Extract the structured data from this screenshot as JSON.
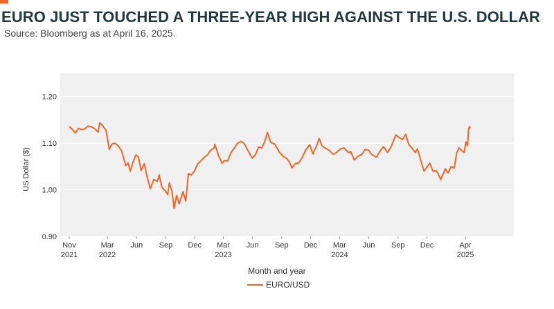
{
  "title": "EURO JUST TOUCHED A THREE-YEAR HIGH AGAINST THE U.S. DOLLAR",
  "subtitle": "Source: Bloomberg as at April 16, 2025.",
  "colors": {
    "accent": "#f26522",
    "line": "#f26522",
    "plot_background": "#f0f0f0",
    "grid": "#ffffff",
    "title": "#1e3a3e"
  },
  "chart_data": {
    "type": "line",
    "xlabel": "Month and year",
    "ylabel": "US Dollar ($)",
    "ylim": [
      0.9,
      1.25
    ],
    "yticks": [
      "1.20",
      "1.10",
      "1.00",
      "0.90"
    ],
    "ytick_values": [
      1.2,
      1.1,
      1.0,
      0.9
    ],
    "grid": true,
    "legend_position": "bottom-center",
    "xlim": [
      "2021-11-01",
      "2025-06-30"
    ],
    "xticks": [
      {
        "date": "2021-11-01",
        "label": "Nov",
        "year": "2021"
      },
      {
        "date": "2022-03-01",
        "label": "Mar",
        "year": "2022"
      },
      {
        "date": "2022-06-01",
        "label": "Jun",
        "year": ""
      },
      {
        "date": "2022-09-01",
        "label": "Sep",
        "year": ""
      },
      {
        "date": "2022-12-01",
        "label": "Dec",
        "year": ""
      },
      {
        "date": "2023-03-01",
        "label": "Mar",
        "year": "2023"
      },
      {
        "date": "2023-06-01",
        "label": "Jun",
        "year": ""
      },
      {
        "date": "2023-09-01",
        "label": "Sep",
        "year": ""
      },
      {
        "date": "2023-12-01",
        "label": "Dec",
        "year": ""
      },
      {
        "date": "2024-03-01",
        "label": "Mar",
        "year": "2024"
      },
      {
        "date": "2024-06-01",
        "label": "Jun",
        "year": ""
      },
      {
        "date": "2024-09-01",
        "label": "Sep",
        "year": ""
      },
      {
        "date": "2024-12-01",
        "label": "Dec",
        "year": ""
      },
      {
        "date": "2025-04-01",
        "label": "Apr",
        "year": "2025"
      }
    ],
    "series": [
      {
        "name": "EURO/USD",
        "points": [
          [
            "2021-11-01",
            1.136
          ],
          [
            "2021-11-10",
            1.13
          ],
          [
            "2021-11-20",
            1.122
          ],
          [
            "2021-11-30",
            1.132
          ],
          [
            "2021-12-10",
            1.129
          ],
          [
            "2021-12-20",
            1.131
          ],
          [
            "2021-12-31",
            1.137
          ],
          [
            "2022-01-10",
            1.135
          ],
          [
            "2022-01-20",
            1.131
          ],
          [
            "2022-01-31",
            1.124
          ],
          [
            "2022-02-05",
            1.144
          ],
          [
            "2022-02-15",
            1.137
          ],
          [
            "2022-02-25",
            1.127
          ],
          [
            "2022-03-07",
            1.087
          ],
          [
            "2022-03-15",
            1.098
          ],
          [
            "2022-03-25",
            1.1
          ],
          [
            "2022-04-05",
            1.094
          ],
          [
            "2022-04-15",
            1.083
          ],
          [
            "2022-04-28",
            1.052
          ],
          [
            "2022-05-05",
            1.058
          ],
          [
            "2022-05-12",
            1.04
          ],
          [
            "2022-05-20",
            1.058
          ],
          [
            "2022-05-30",
            1.075
          ],
          [
            "2022-06-07",
            1.07
          ],
          [
            "2022-06-15",
            1.042
          ],
          [
            "2022-06-25",
            1.056
          ],
          [
            "2022-07-05",
            1.026
          ],
          [
            "2022-07-14",
            1.002
          ],
          [
            "2022-07-25",
            1.022
          ],
          [
            "2022-08-05",
            1.018
          ],
          [
            "2022-08-11",
            1.032
          ],
          [
            "2022-08-20",
            1.005
          ],
          [
            "2022-08-30",
            0.998
          ],
          [
            "2022-09-07",
            0.99
          ],
          [
            "2022-09-12",
            1.015
          ],
          [
            "2022-09-20",
            0.998
          ],
          [
            "2022-09-27",
            0.96
          ],
          [
            "2022-10-05",
            0.988
          ],
          [
            "2022-10-13",
            0.97
          ],
          [
            "2022-10-25",
            0.996
          ],
          [
            "2022-11-03",
            0.976
          ],
          [
            "2022-11-11",
            1.035
          ],
          [
            "2022-11-20",
            1.032
          ],
          [
            "2022-11-30",
            1.04
          ],
          [
            "2022-12-10",
            1.055
          ],
          [
            "2022-12-20",
            1.062
          ],
          [
            "2022-12-31",
            1.07
          ],
          [
            "2023-01-10",
            1.075
          ],
          [
            "2023-01-20",
            1.085
          ],
          [
            "2023-01-31",
            1.09
          ],
          [
            "2023-02-02",
            1.098
          ],
          [
            "2023-02-15",
            1.072
          ],
          [
            "2023-02-25",
            1.057
          ],
          [
            "2023-03-05",
            1.063
          ],
          [
            "2023-03-15",
            1.062
          ],
          [
            "2023-03-25",
            1.08
          ],
          [
            "2023-04-05",
            1.09
          ],
          [
            "2023-04-15",
            1.1
          ],
          [
            "2023-04-26",
            1.104
          ],
          [
            "2023-05-05",
            1.1
          ],
          [
            "2023-05-15",
            1.087
          ],
          [
            "2023-05-31",
            1.068
          ],
          [
            "2023-06-10",
            1.075
          ],
          [
            "2023-06-20",
            1.092
          ],
          [
            "2023-06-30",
            1.09
          ],
          [
            "2023-07-10",
            1.105
          ],
          [
            "2023-07-18",
            1.123
          ],
          [
            "2023-07-28",
            1.102
          ],
          [
            "2023-08-10",
            1.098
          ],
          [
            "2023-08-25",
            1.08
          ],
          [
            "2023-09-05",
            1.072
          ],
          [
            "2023-09-15",
            1.068
          ],
          [
            "2023-09-25",
            1.06
          ],
          [
            "2023-10-03",
            1.047
          ],
          [
            "2023-10-13",
            1.056
          ],
          [
            "2023-10-25",
            1.058
          ],
          [
            "2023-11-05",
            1.07
          ],
          [
            "2023-11-15",
            1.085
          ],
          [
            "2023-11-28",
            1.097
          ],
          [
            "2023-12-08",
            1.077
          ],
          [
            "2023-12-20",
            1.095
          ],
          [
            "2023-12-28",
            1.11
          ],
          [
            "2024-01-05",
            1.095
          ],
          [
            "2024-01-15",
            1.09
          ],
          [
            "2024-01-28",
            1.085
          ],
          [
            "2024-02-10",
            1.076
          ],
          [
            "2024-02-20",
            1.08
          ],
          [
            "2024-03-05",
            1.088
          ],
          [
            "2024-03-15",
            1.09
          ],
          [
            "2024-03-28",
            1.08
          ],
          [
            "2024-04-05",
            1.082
          ],
          [
            "2024-04-16",
            1.064
          ],
          [
            "2024-04-28",
            1.072
          ],
          [
            "2024-05-10",
            1.076
          ],
          [
            "2024-05-20",
            1.087
          ],
          [
            "2024-05-31",
            1.085
          ],
          [
            "2024-06-10",
            1.076
          ],
          [
            "2024-06-25",
            1.07
          ],
          [
            "2024-07-05",
            1.082
          ],
          [
            "2024-07-17",
            1.093
          ],
          [
            "2024-07-30",
            1.08
          ],
          [
            "2024-08-10",
            1.092
          ],
          [
            "2024-08-25",
            1.118
          ],
          [
            "2024-09-05",
            1.112
          ],
          [
            "2024-09-15",
            1.108
          ],
          [
            "2024-09-25",
            1.119
          ],
          [
            "2024-10-05",
            1.097
          ],
          [
            "2024-10-15",
            1.09
          ],
          [
            "2024-10-25",
            1.08
          ],
          [
            "2024-11-01",
            1.088
          ],
          [
            "2024-11-08",
            1.072
          ],
          [
            "2024-11-15",
            1.055
          ],
          [
            "2024-11-22",
            1.04
          ],
          [
            "2024-12-02",
            1.05
          ],
          [
            "2024-12-10",
            1.057
          ],
          [
            "2024-12-20",
            1.04
          ],
          [
            "2024-12-30",
            1.041
          ],
          [
            "2025-01-05",
            1.035
          ],
          [
            "2025-01-13",
            1.022
          ],
          [
            "2025-01-20",
            1.032
          ],
          [
            "2025-01-28",
            1.045
          ],
          [
            "2025-02-05",
            1.036
          ],
          [
            "2025-02-15",
            1.05
          ],
          [
            "2025-02-25",
            1.047
          ],
          [
            "2025-03-05",
            1.08
          ],
          [
            "2025-03-12",
            1.09
          ],
          [
            "2025-03-20",
            1.085
          ],
          [
            "2025-03-28",
            1.08
          ],
          [
            "2025-04-03",
            1.103
          ],
          [
            "2025-04-08",
            1.095
          ],
          [
            "2025-04-11",
            1.13
          ],
          [
            "2025-04-14",
            1.136
          ],
          [
            "2025-04-16",
            1.132
          ]
        ]
      }
    ]
  }
}
